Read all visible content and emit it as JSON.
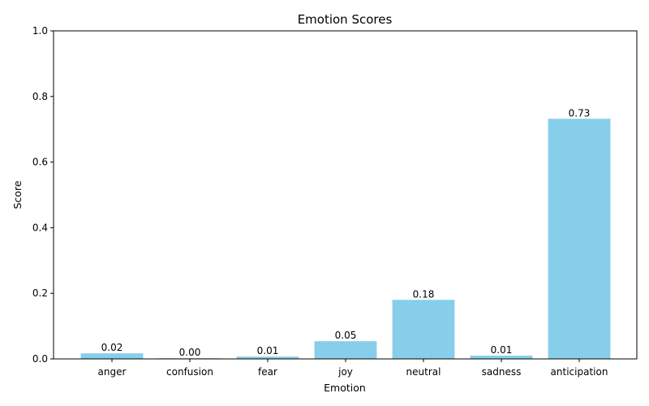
{
  "chart_data": {
    "type": "bar",
    "title": "Emotion Scores",
    "xlabel": "Emotion",
    "ylabel": "Score",
    "categories": [
      "anger",
      "confusion",
      "fear",
      "joy",
      "neutral",
      "sadness",
      "anticipation"
    ],
    "values": [
      0.017,
      0.002,
      0.007,
      0.054,
      0.18,
      0.01,
      0.732
    ],
    "data_labels": [
      "0.02",
      "0.00",
      "0.01",
      "0.05",
      "0.18",
      "0.01",
      "0.73"
    ],
    "ylim": [
      0,
      1.0
    ],
    "yticks": [
      0.0,
      0.2,
      0.4,
      0.6,
      0.8,
      1.0
    ],
    "ytick_labels": [
      "0.0",
      "0.2",
      "0.4",
      "0.6",
      "0.8",
      "1.0"
    ],
    "bar_color": "#87ceeb",
    "grid": false,
    "legend": "none"
  }
}
